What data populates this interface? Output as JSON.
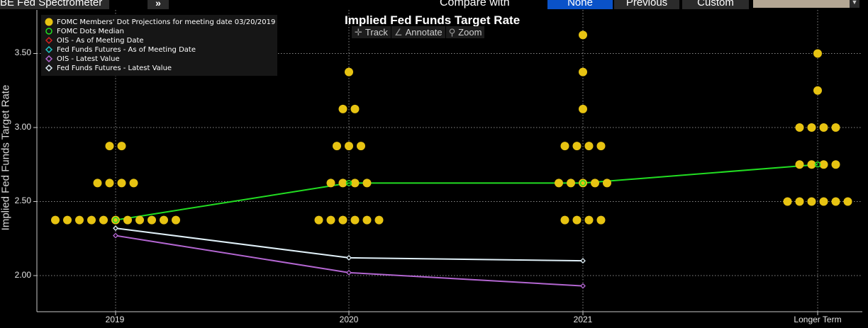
{
  "topbar": {
    "title": "BE Fed Spectrometer",
    "chevron": "»",
    "compare_label": "Compare with",
    "buttons": [
      "None",
      "Previous",
      "Custom"
    ],
    "selected_button": "None",
    "accent_color": "#0a52c8"
  },
  "toolbar": {
    "tools": [
      {
        "label": "Track",
        "icon": "crosshair-icon"
      },
      {
        "label": "Annotate",
        "icon": "pencil-icon"
      },
      {
        "label": "Zoom",
        "icon": "magnifier-icon"
      }
    ]
  },
  "chart_data": {
    "type": "scatter",
    "title": "Implied Fed Funds Target Rate",
    "ylabel": "Implied Fed Funds Target Rate",
    "xlabel": "",
    "categories": [
      "2019",
      "2020",
      "2021",
      "Longer Term"
    ],
    "yticks": [
      "2.00",
      "2.50",
      "3.00",
      "3.50"
    ],
    "ylim": [
      1.76,
      3.78
    ],
    "grid": true,
    "legend_position": "top-left",
    "dots": {
      "name": "FOMC Members' Dot Projections for meeting date 03/20/2019",
      "color": "#e7c312",
      "points": [
        {
          "category": "2019",
          "rate": 2.375,
          "count": 11
        },
        {
          "category": "2019",
          "rate": 2.625,
          "count": 4
        },
        {
          "category": "2019",
          "rate": 2.875,
          "count": 2
        },
        {
          "category": "2020",
          "rate": 2.375,
          "count": 6
        },
        {
          "category": "2020",
          "rate": 2.625,
          "count": 4
        },
        {
          "category": "2020",
          "rate": 2.875,
          "count": 3
        },
        {
          "category": "2020",
          "rate": 3.125,
          "count": 2
        },
        {
          "category": "2020",
          "rate": 3.375,
          "count": 1
        },
        {
          "category": "2021",
          "rate": 2.375,
          "count": 4
        },
        {
          "category": "2021",
          "rate": 2.625,
          "count": 5
        },
        {
          "category": "2021",
          "rate": 2.875,
          "count": 4
        },
        {
          "category": "2021",
          "rate": 3.125,
          "count": 1
        },
        {
          "category": "2021",
          "rate": 3.375,
          "count": 1
        },
        {
          "category": "2021",
          "rate": 3.625,
          "count": 1
        },
        {
          "category": "Longer Term",
          "rate": 2.5,
          "count": 6
        },
        {
          "category": "Longer Term",
          "rate": 2.75,
          "count": 4
        },
        {
          "category": "Longer Term",
          "rate": 3.0,
          "count": 4
        },
        {
          "category": "Longer Term",
          "rate": 3.25,
          "count": 1
        },
        {
          "category": "Longer Term",
          "rate": 3.5,
          "count": 1
        }
      ]
    },
    "series": [
      {
        "name": "FOMC Dots Median",
        "color": "#22dd22",
        "marker": "circle",
        "values": [
          2.375,
          2.625,
          2.625,
          2.75
        ]
      },
      {
        "name": "OIS - As of Meeting Date",
        "color": "#d42020",
        "marker": "diamond",
        "values": []
      },
      {
        "name": "Fed Funds Futures - As of Meeting Date",
        "color": "#20c8c8",
        "marker": "diamond",
        "values": []
      },
      {
        "name": "OIS - Latest Value",
        "color": "#b366d1",
        "marker": "diamond",
        "values": [
          2.27,
          2.02,
          1.93,
          null
        ]
      },
      {
        "name": "Fed Funds Futures - Latest Value",
        "color": "#e0f0f8",
        "marker": "diamond",
        "values": [
          2.32,
          2.12,
          2.1,
          null
        ]
      }
    ]
  }
}
